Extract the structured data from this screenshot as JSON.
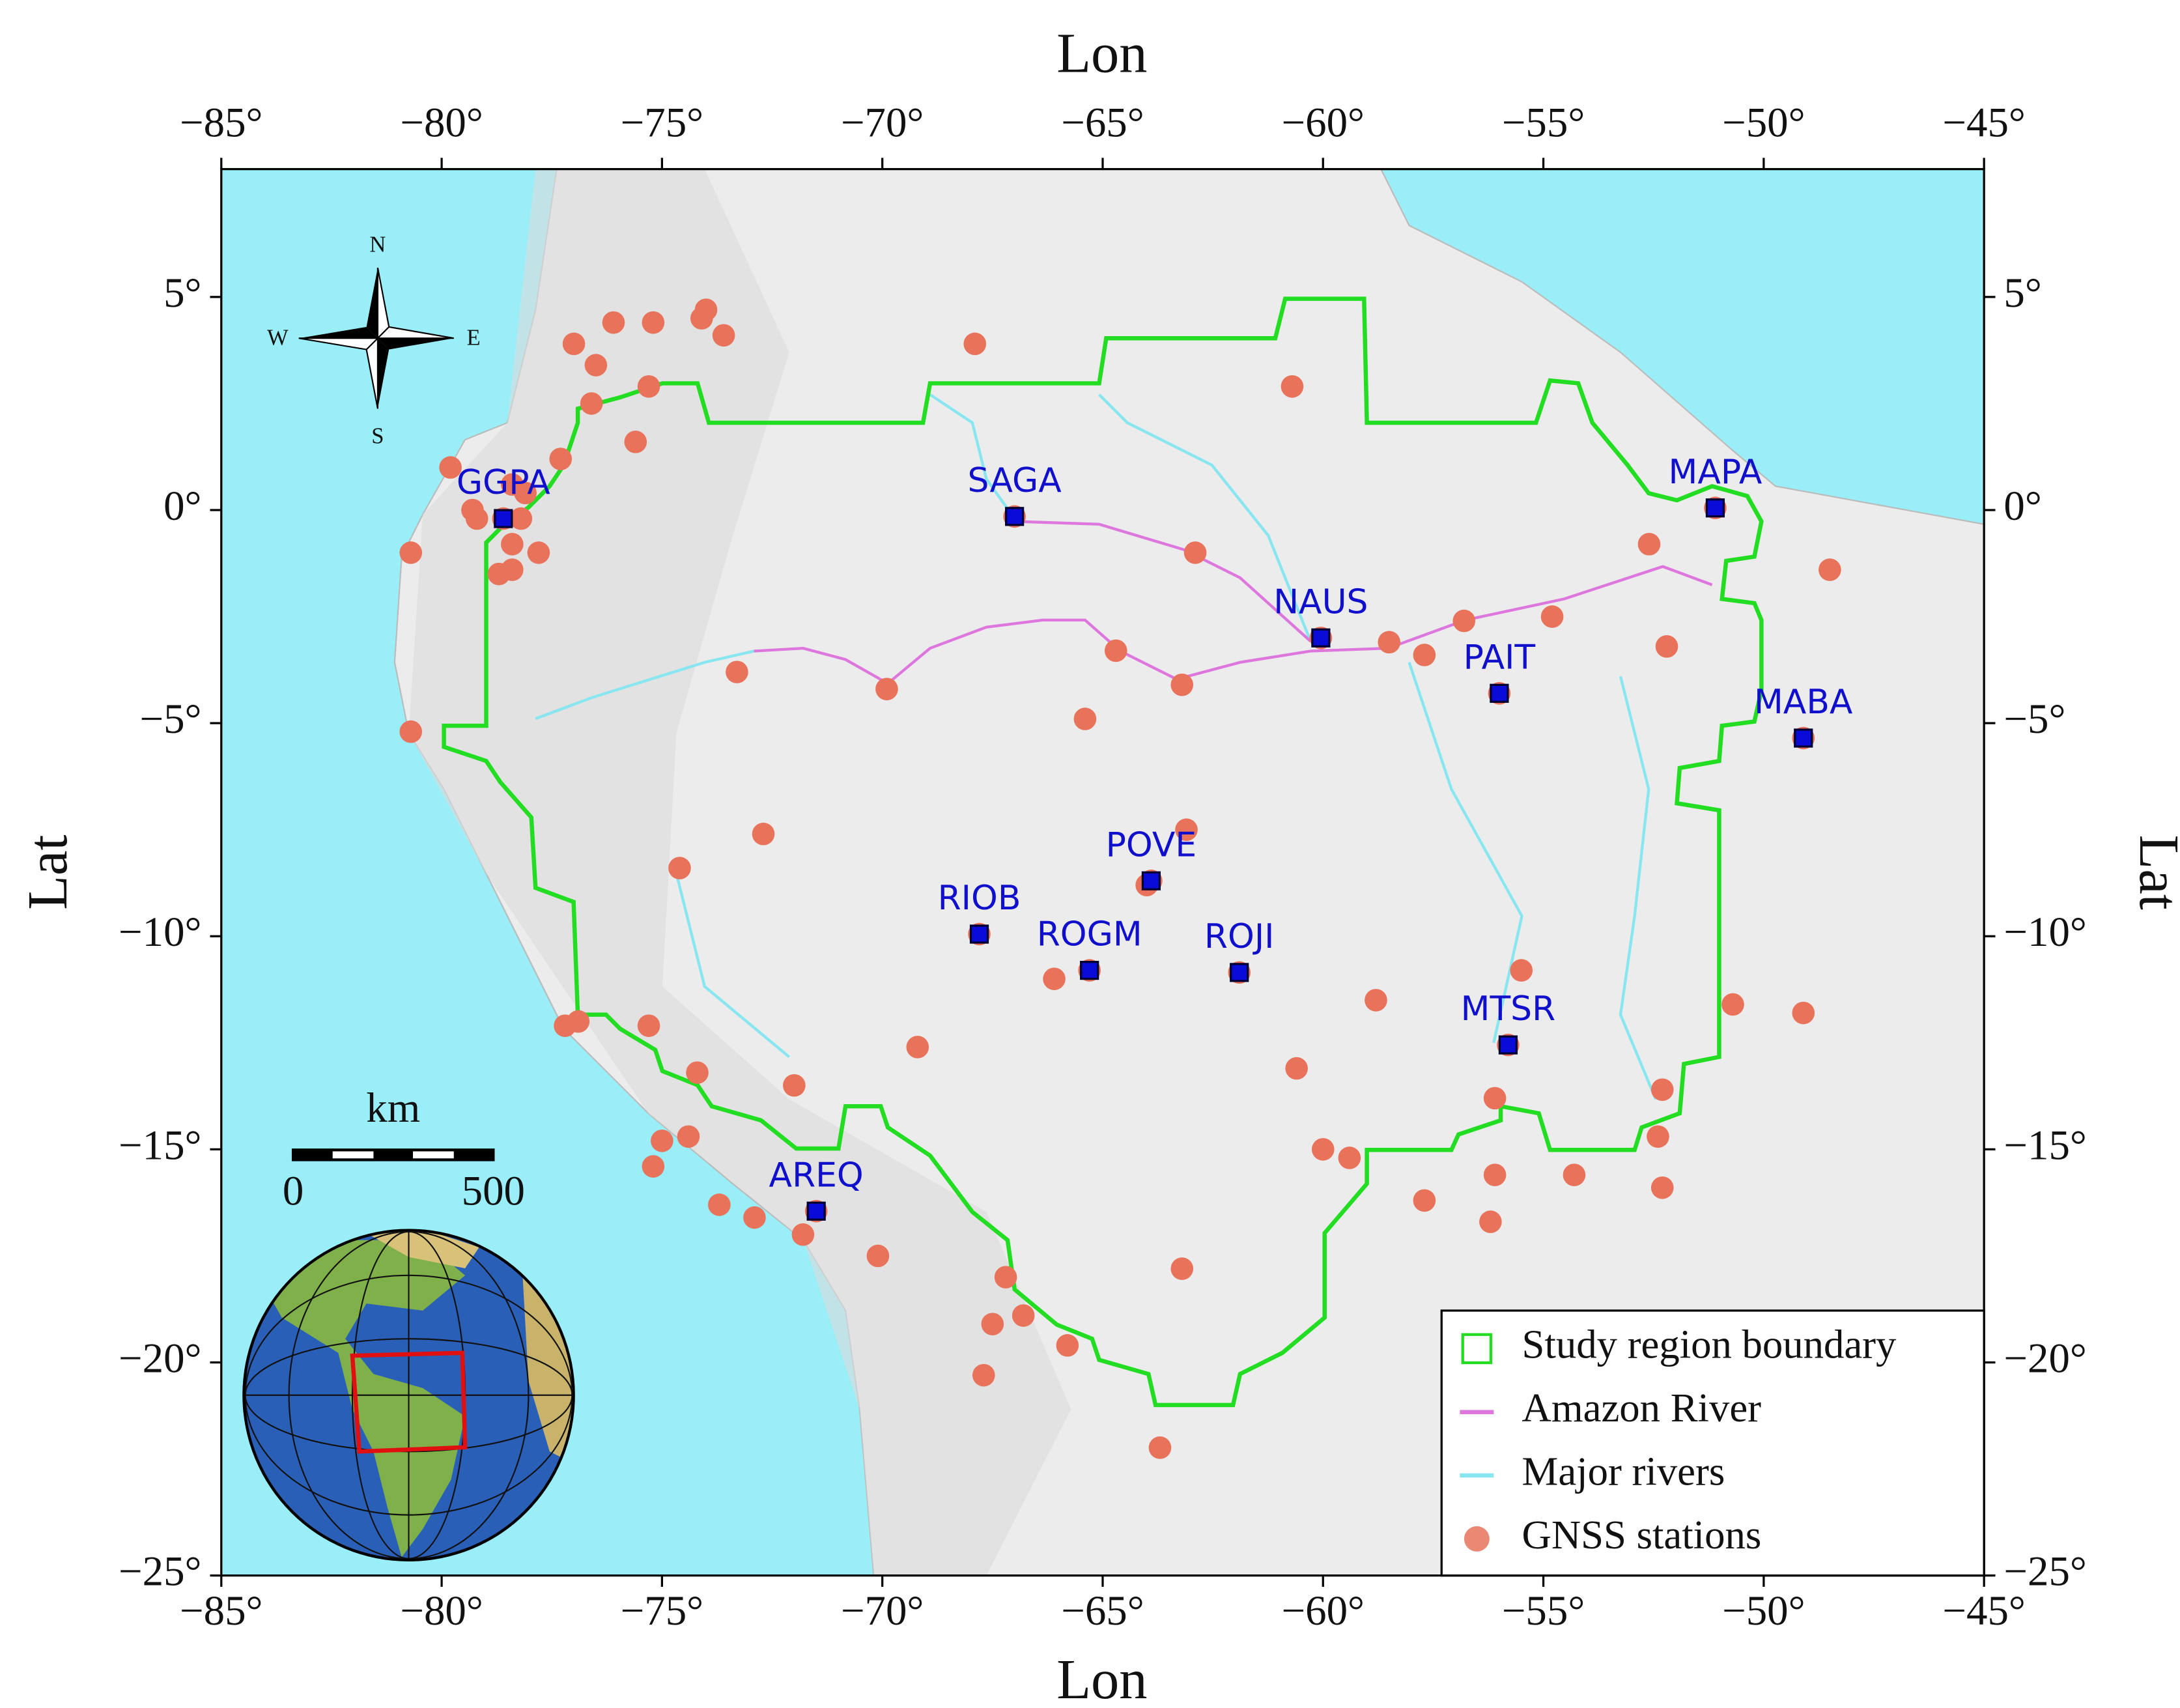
{
  "map": {
    "x_label": "Lon",
    "y_label": "Lat",
    "xlim": [
      -85,
      -45
    ],
    "ylim": [
      -25,
      8
    ],
    "xticks": [
      {
        "value": -85,
        "label": "−85°"
      },
      {
        "value": -80,
        "label": "−80°"
      },
      {
        "value": -75,
        "label": "−75°"
      },
      {
        "value": -70,
        "label": "−70°"
      },
      {
        "value": -65,
        "label": "−65°"
      },
      {
        "value": -60,
        "label": "−60°"
      },
      {
        "value": -55,
        "label": "−55°"
      },
      {
        "value": -50,
        "label": "−50°"
      },
      {
        "value": -45,
        "label": "−45°"
      }
    ],
    "yticks": [
      {
        "value": 5,
        "label": "5°"
      },
      {
        "value": 0,
        "label": "0°"
      },
      {
        "value": -5,
        "label": "−5°"
      },
      {
        "value": -10,
        "label": "−10°"
      },
      {
        "value": -15,
        "label": "−15°"
      },
      {
        "value": -20,
        "label": "−20°"
      },
      {
        "value": -25,
        "label": "−25°"
      }
    ],
    "legend": [
      {
        "label": "Study region boundary",
        "color": "#22dd22"
      },
      {
        "label": "Amazon River",
        "color": "#dd77dd"
      },
      {
        "label": "Major rivers",
        "color": "#88e6f0"
      },
      {
        "label": "GNSS stations",
        "color": "#e8735a"
      }
    ],
    "sites": [
      {
        "name": "GGPA",
        "lon": -78.6,
        "lat": -0.2
      },
      {
        "name": "SAGA",
        "lon": -67.0,
        "lat": -0.15
      },
      {
        "name": "MAPA",
        "lon": -51.1,
        "lat": 0.05
      },
      {
        "name": "NAUS",
        "lon": -60.05,
        "lat": -3.0
      },
      {
        "name": "PAIT",
        "lon": -56.0,
        "lat": -4.3
      },
      {
        "name": "MABA",
        "lon": -49.1,
        "lat": -5.35
      },
      {
        "name": "POVE",
        "lon": -63.9,
        "lat": -8.7
      },
      {
        "name": "RIOB",
        "lon": -67.8,
        "lat": -9.95
      },
      {
        "name": "ROGM",
        "lon": -65.3,
        "lat": -10.8
      },
      {
        "name": "ROJI",
        "lon": -61.9,
        "lat": -10.85
      },
      {
        "name": "MTSR",
        "lon": -55.8,
        "lat": -12.55
      },
      {
        "name": "AREQ",
        "lon": -71.5,
        "lat": -16.45
      }
    ],
    "stations": [
      [
        -77.0,
        3.9
      ],
      [
        -76.1,
        4.4
      ],
      [
        -75.2,
        4.4
      ],
      [
        -74.1,
        4.5
      ],
      [
        -74.0,
        4.7
      ],
      [
        -73.6,
        4.1
      ],
      [
        -76.5,
        3.4
      ],
      [
        -75.3,
        2.9
      ],
      [
        -76.6,
        2.5
      ],
      [
        -75.6,
        1.6
      ],
      [
        -77.3,
        1.2
      ],
      [
        -79.8,
        1.0
      ],
      [
        -79.3,
        0
      ],
      [
        -79.2,
        -0.2
      ],
      [
        -78.4,
        0.6
      ],
      [
        -78.1,
        0.4
      ],
      [
        -78.2,
        -0.2
      ],
      [
        -78.4,
        -0.8
      ],
      [
        -78.7,
        -1.5
      ],
      [
        -78.4,
        -1.4
      ],
      [
        -77.8,
        -1.0
      ],
      [
        -80.7,
        -1.0
      ],
      [
        -80.7,
        -5.2
      ],
      [
        -67.9,
        3.9
      ],
      [
        -60.7,
        2.9
      ],
      [
        -62.9,
        -1.0
      ],
      [
        -52.6,
        -0.8
      ],
      [
        -48.5,
        -1.4
      ],
      [
        -56.8,
        -2.6
      ],
      [
        -54.8,
        -2.5
      ],
      [
        -58.5,
        -3.1
      ],
      [
        -57.7,
        -3.4
      ],
      [
        -52.2,
        -3.2
      ],
      [
        -64.7,
        -3.3
      ],
      [
        -63.2,
        -4.1
      ],
      [
        -69.9,
        -4.2
      ],
      [
        -73.3,
        -3.8
      ],
      [
        -65.4,
        -4.9
      ],
      [
        -72.7,
        -7.6
      ],
      [
        -63.1,
        -7.5
      ],
      [
        -74.6,
        -8.4
      ],
      [
        -64.0,
        -8.8
      ],
      [
        -66.1,
        -11.0
      ],
      [
        -55.5,
        -10.8
      ],
      [
        -58.8,
        -11.5
      ],
      [
        -50.7,
        -11.6
      ],
      [
        -49.1,
        -11.8
      ],
      [
        -77.2,
        -12.1
      ],
      [
        -76.9,
        -12.0
      ],
      [
        -75.3,
        -12.1
      ],
      [
        -69.2,
        -12.6
      ],
      [
        -74.2,
        -13.2
      ],
      [
        -72.0,
        -13.5
      ],
      [
        -60.6,
        -13.1
      ],
      [
        -56.1,
        -13.8
      ],
      [
        -52.3,
        -13.6
      ],
      [
        -75.0,
        -14.8
      ],
      [
        -74.4,
        -14.7
      ],
      [
        -75.2,
        -15.4
      ],
      [
        -52.4,
        -14.7
      ],
      [
        -60.0,
        -15.0
      ],
      [
        -59.4,
        -15.2
      ],
      [
        -56.1,
        -15.6
      ],
      [
        -54.3,
        -15.6
      ],
      [
        -52.3,
        -15.9
      ],
      [
        -73.7,
        -16.3
      ],
      [
        -72.9,
        -16.6
      ],
      [
        -71.8,
        -17.0
      ],
      [
        -70.1,
        -17.5
      ],
      [
        -57.7,
        -16.2
      ],
      [
        -56.2,
        -16.7
      ],
      [
        -67.2,
        -18.0
      ],
      [
        -63.2,
        -17.8
      ],
      [
        -66.8,
        -18.9
      ],
      [
        -67.5,
        -19.1
      ],
      [
        -65.8,
        -19.6
      ],
      [
        -67.7,
        -20.3
      ],
      [
        -63.7,
        -22.0
      ]
    ],
    "compass": {
      "n": "N",
      "s": "S",
      "w": "W",
      "e": "E"
    },
    "scale_bar": {
      "unit": "km",
      "start": "0",
      "end": "500"
    }
  }
}
